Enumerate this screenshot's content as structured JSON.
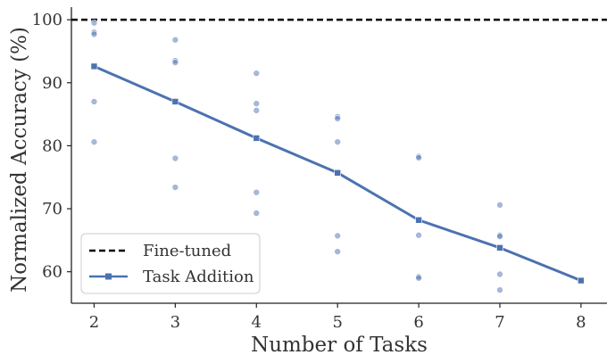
{
  "chart_data": {
    "type": "line",
    "xlabel": "Number of Tasks",
    "ylabel": "Normalized Accuracy (%)",
    "xlim": [
      1.72,
      8.32
    ],
    "ylim": [
      55,
      102
    ],
    "x_ticks": [
      2,
      3,
      4,
      5,
      6,
      7,
      8
    ],
    "y_ticks": [
      60,
      70,
      80,
      90,
      100
    ],
    "grid": false,
    "legend_position": "lower-left",
    "reference_line": {
      "name": "Fine-tuned",
      "y": 100,
      "style": "dashed",
      "color": "#000000"
    },
    "series": [
      {
        "name": "Task Addition",
        "color": "#4c72b0",
        "marker": "square",
        "x": [
          2,
          3,
          4,
          5,
          6,
          7,
          8
        ],
        "y": [
          92.6,
          87.0,
          81.2,
          75.7,
          68.2,
          63.8,
          58.6
        ]
      }
    ],
    "scatter": {
      "color": "#4c72b0",
      "opacity": 0.5,
      "points": [
        {
          "x": 2,
          "y": 99.5
        },
        {
          "x": 2,
          "y": 98.0
        },
        {
          "x": 2,
          "y": 97.7
        },
        {
          "x": 2,
          "y": 87.0
        },
        {
          "x": 2,
          "y": 80.6
        },
        {
          "x": 3,
          "y": 96.8
        },
        {
          "x": 3,
          "y": 93.5
        },
        {
          "x": 3,
          "y": 93.2
        },
        {
          "x": 3,
          "y": 78.0
        },
        {
          "x": 3,
          "y": 73.4
        },
        {
          "x": 4,
          "y": 91.5
        },
        {
          "x": 4,
          "y": 86.7
        },
        {
          "x": 4,
          "y": 85.6
        },
        {
          "x": 4,
          "y": 72.6
        },
        {
          "x": 4,
          "y": 69.3
        },
        {
          "x": 5,
          "y": 84.6
        },
        {
          "x": 5,
          "y": 84.3
        },
        {
          "x": 5,
          "y": 80.6
        },
        {
          "x": 5,
          "y": 65.7
        },
        {
          "x": 5,
          "y": 63.2
        },
        {
          "x": 6,
          "y": 78.3
        },
        {
          "x": 6,
          "y": 78.1
        },
        {
          "x": 6,
          "y": 65.8
        },
        {
          "x": 6,
          "y": 59.2
        },
        {
          "x": 6,
          "y": 59.0
        },
        {
          "x": 7,
          "y": 70.6
        },
        {
          "x": 7,
          "y": 65.8
        },
        {
          "x": 7,
          "y": 65.6
        },
        {
          "x": 7,
          "y": 59.6
        },
        {
          "x": 7,
          "y": 57.1
        }
      ]
    },
    "legend": [
      "Fine-tuned",
      "Task Addition"
    ]
  }
}
